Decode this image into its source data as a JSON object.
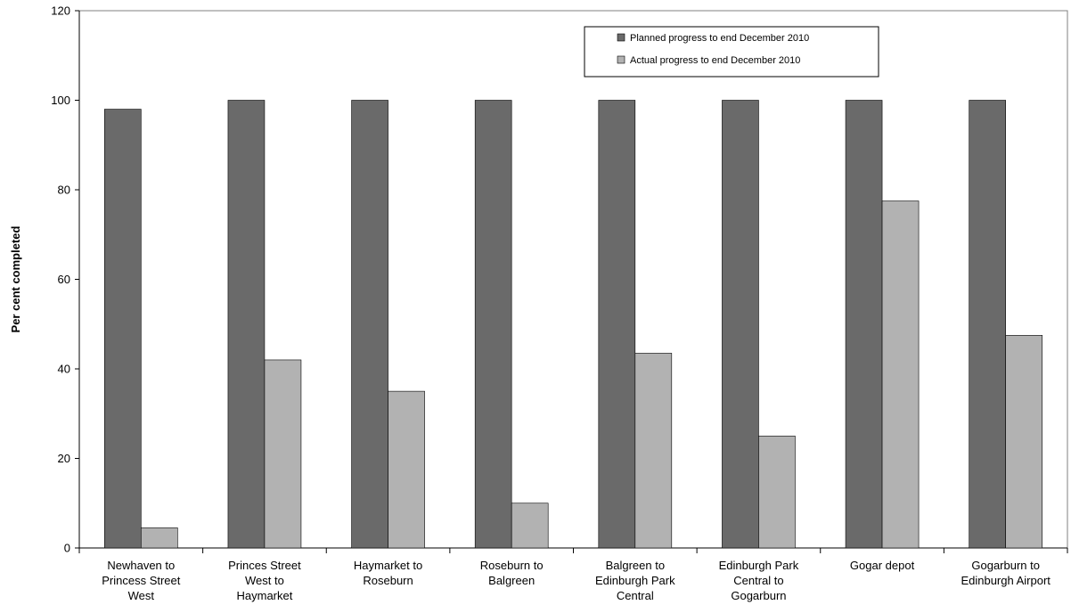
{
  "chart_data": {
    "type": "bar",
    "title": "",
    "xlabel": "",
    "ylabel": "Per cent completed",
    "ylim": [
      0,
      120
    ],
    "yticks": [
      0,
      20,
      40,
      60,
      80,
      100,
      120
    ],
    "grid": false,
    "legend_position": "top-right",
    "categories": [
      [
        "Newhaven to",
        "Princess Street",
        "West"
      ],
      [
        "Princes Street",
        "West to",
        "Haymarket"
      ],
      [
        "Haymarket to",
        "Roseburn"
      ],
      [
        "Roseburn to",
        "Balgreen"
      ],
      [
        "Balgreen to",
        "Edinburgh Park",
        "Central"
      ],
      [
        "Edinburgh Park",
        "Central to",
        "Gogarburn"
      ],
      [
        "Gogar depot"
      ],
      [
        "Gogarburn to",
        "Edinburgh Airport"
      ]
    ],
    "series": [
      {
        "name": "Planned progress to end December 2010",
        "color": "#6a6a6a",
        "values": [
          98,
          100,
          100,
          100,
          100,
          100,
          100,
          100
        ]
      },
      {
        "name": "Actual progress to end December 2010",
        "color": "#b2b2b2",
        "values": [
          4.5,
          42,
          35,
          10,
          43.5,
          25,
          77.5,
          47.5
        ]
      }
    ]
  }
}
